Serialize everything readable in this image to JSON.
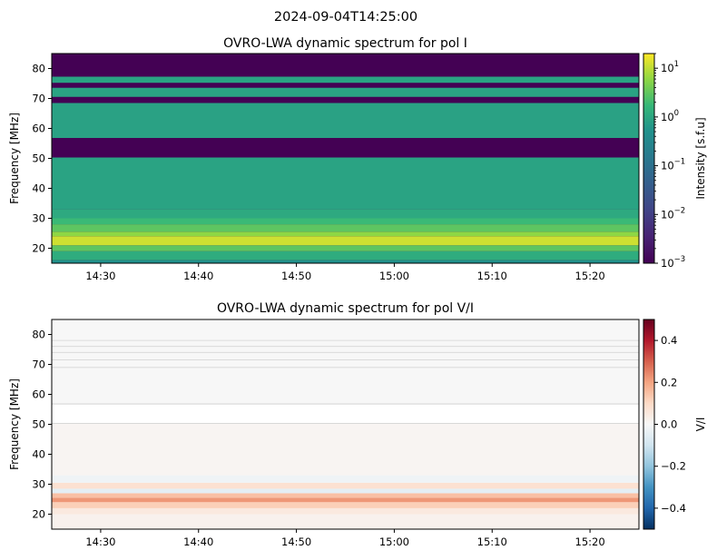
{
  "suptitle": "2024-09-04T14:25:00",
  "chart_data": [
    {
      "type": "heatmap",
      "title": "OVRO-LWA dynamic spectrum for pol I",
      "xlabel": "",
      "ylabel": "Frequency [MHz]",
      "x_ticks": [
        "14:30",
        "14:40",
        "14:50",
        "15:00",
        "15:10",
        "15:20"
      ],
      "x_tick_minutes": [
        5,
        15,
        25,
        35,
        45,
        55
      ],
      "xlim_minutes": [
        0,
        60
      ],
      "x_time_range": [
        "14:25",
        "15:25"
      ],
      "y_ticks": [
        20,
        30,
        40,
        50,
        60,
        70,
        80
      ],
      "ylim": [
        15,
        85
      ],
      "colorbar": {
        "label": "Intensity [s.f.u]",
        "scale": "log",
        "colormap": "viridis",
        "range": [
          0.001,
          20
        ],
        "ticks": [
          {
            "base": "10",
            "exp": "−3",
            "value": 0.001
          },
          {
            "base": "10",
            "exp": "−2",
            "value": 0.01
          },
          {
            "base": "10",
            "exp": "−1",
            "value": 0.1
          },
          {
            "base": "10",
            "exp": "0",
            "value": 1
          },
          {
            "base": "10",
            "exp": "1",
            "value": 10
          }
        ]
      },
      "masked_bands_mhz": [
        [
          77.3,
          85
        ],
        [
          73.6,
          75.2
        ],
        [
          68.5,
          70.5
        ],
        [
          50.3,
          56.8
        ]
      ],
      "bands_mhz": [
        {
          "from": 15,
          "to": 16,
          "value": 0.5
        },
        {
          "from": 16,
          "to": 19,
          "value": 1.2
        },
        {
          "from": 19,
          "to": 21,
          "value": 3
        },
        {
          "from": 21,
          "to": 24,
          "value": 12
        },
        {
          "from": 24,
          "to": 25.5,
          "value": 6
        },
        {
          "from": 25.5,
          "to": 28,
          "value": 3
        },
        {
          "from": 28,
          "to": 30,
          "value": 1.8
        },
        {
          "from": 30,
          "to": 33,
          "value": 1.1
        },
        {
          "from": 33,
          "to": 50.3,
          "value": 0.9
        },
        {
          "from": 56.8,
          "to": 68.5,
          "value": 0.85
        },
        {
          "from": 70.5,
          "to": 73.6,
          "value": 0.9
        },
        {
          "from": 75.2,
          "to": 77.3,
          "value": 0.9
        }
      ]
    },
    {
      "type": "heatmap",
      "title": "OVRO-LWA dynamic spectrum for pol V/I",
      "xlabel": "",
      "ylabel": "Frequency [MHz]",
      "x_ticks": [
        "14:30",
        "14:40",
        "14:50",
        "15:00",
        "15:10",
        "15:20"
      ],
      "x_tick_minutes": [
        5,
        15,
        25,
        35,
        45,
        55
      ],
      "xlim_minutes": [
        0,
        60
      ],
      "x_time_range": [
        "14:25",
        "15:25"
      ],
      "y_ticks": [
        20,
        30,
        40,
        50,
        60,
        70,
        80
      ],
      "ylim": [
        15,
        85
      ],
      "colorbar": {
        "label": "V/I",
        "scale": "linear",
        "colormap": "RdBu_r",
        "range": [
          -0.5,
          0.5
        ],
        "ticks": [
          {
            "label": "−0.4",
            "value": -0.4
          },
          {
            "label": "−0.2",
            "value": -0.2
          },
          {
            "label": "0.0",
            "value": 0.0
          },
          {
            "label": "0.2",
            "value": 0.2
          },
          {
            "label": "0.4",
            "value": 0.4
          }
        ]
      },
      "masked_bands_mhz": [
        [
          50.3,
          56.8
        ]
      ],
      "bands_mhz": [
        {
          "from": 15,
          "to": 20,
          "value": 0.02
        },
        {
          "from": 20,
          "to": 22,
          "value": 0.05
        },
        {
          "from": 22,
          "to": 24,
          "value": 0.12
        },
        {
          "from": 24,
          "to": 25.5,
          "value": 0.22
        },
        {
          "from": 25.5,
          "to": 27,
          "value": 0.15
        },
        {
          "from": 27,
          "to": 28.5,
          "value": -0.05
        },
        {
          "from": 28.5,
          "to": 30.5,
          "value": 0.08
        },
        {
          "from": 30.5,
          "to": 33,
          "value": -0.02
        },
        {
          "from": 33,
          "to": 50.3,
          "value": 0.01
        },
        {
          "from": 56.8,
          "to": 85,
          "value": 0.0
        }
      ]
    }
  ]
}
